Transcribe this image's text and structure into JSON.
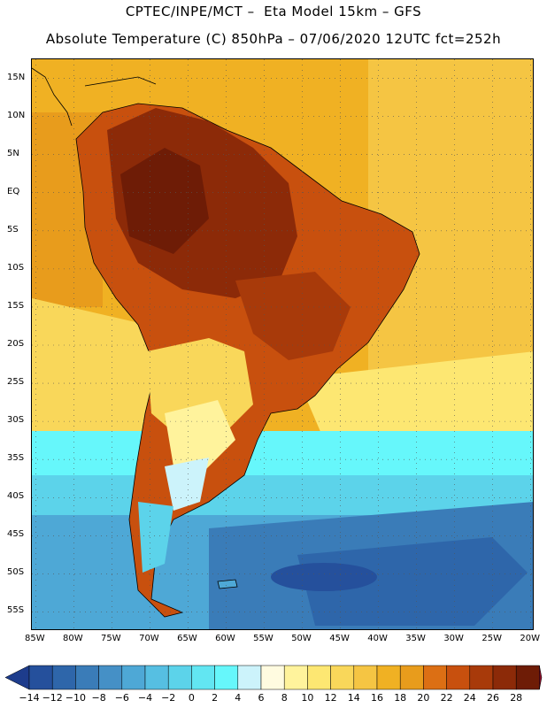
{
  "header": {
    "line1": "CPTEC/INPE/MCT –  Eta Model 15km – GFS",
    "line2": "Absolute Temperature (C) 850hPa – 07/06/2020 12UTC fct=252h"
  },
  "map": {
    "region": "South America",
    "variable": "Absolute Temperature (C) 850hPa",
    "lat_ticks": [
      "15N",
      "10N",
      "5N",
      "EQ",
      "5S",
      "10S",
      "15S",
      "20S",
      "25S",
      "30S",
      "35S",
      "40S",
      "45S",
      "50S",
      "55S"
    ],
    "lon_ticks": [
      "85W",
      "80W",
      "75W",
      "70W",
      "65W",
      "60W",
      "55W",
      "50W",
      "45W",
      "40W",
      "35W",
      "30W",
      "25W",
      "20W"
    ],
    "lat_range": [
      17.5,
      -57.5
    ],
    "lon_range": [
      -85.5,
      -19.5
    ]
  },
  "colorbar": {
    "levels": [
      "-14",
      "-12",
      "-10",
      "-8",
      "-6",
      "-4",
      "-2",
      "0",
      "2",
      "4",
      "6",
      "8",
      "10",
      "12",
      "14",
      "16",
      "18",
      "20",
      "22",
      "24",
      "26",
      "28"
    ],
    "colors": [
      "#1d3c8c",
      "#25509c",
      "#2e66aa",
      "#3a7cb8",
      "#4590c6",
      "#4ea8d6",
      "#56bfe2",
      "#5cd3ea",
      "#62e6f2",
      "#66f7fb",
      "#ccf3fb",
      "#fffbe0",
      "#fff39c",
      "#fde772",
      "#f9d75a",
      "#f5c543",
      "#f0b123",
      "#e89c1c",
      "#dc6f14",
      "#c8500e",
      "#a83a0a",
      "#8c2a08",
      "#6e1c06",
      "#8a0e2a"
    ]
  },
  "colors": {
    "ocean_warm": "#e89c1c",
    "land_hot": "#a83a0a",
    "cold_sea": "#2e66aa",
    "coastline": "#000000",
    "grid": "#555555"
  }
}
